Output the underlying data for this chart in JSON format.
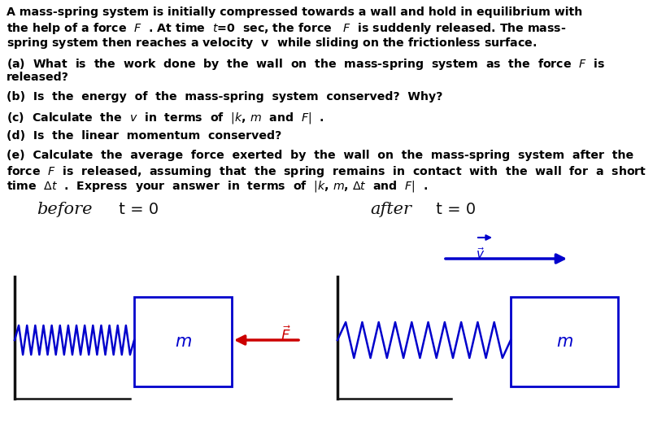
{
  "bg_color": "#ffffff",
  "text_color": "#000000",
  "blue_color": "#0000cc",
  "red_color": "#cc0000",
  "dark_color": "#111111",
  "line1": "A mass-spring system is initially compressed towards a wall and hold in equilibrium with",
  "line2": "the help of a force  F  . At time  t=0  sec, the force   F  is suddenly released. The mass-",
  "line3": "spring system then reaches a velocity  v  while sliding on the frictionless surface.",
  "qa1": "(a)  What  is  the  work  done  by  the  wall  on  the  mass-spring  system  as  the  force  F  is",
  "qa2": "released?",
  "qb": "(b)  Is  the  energy  of  the  mass-spring  system  conserved?  Why?",
  "qc": "(c)  Calculate  the  v  in  terms  of  |k ,m  and  F| .",
  "qd": "(d)  Is  the  linear  momentum  conserved?",
  "qe1": "(e)  Calculate  the  average  force  exerted  by  the  wall  on  the  mass-spring  system  after  the",
  "qe2": "force  F  is  released,  assuming  that  the  spring  remains  in  contact  with  the  wall  for  a  short",
  "qe3": "time  Δt  .  Express  your  answer  in  terms  of  |k,m,Δt  and  F| ."
}
